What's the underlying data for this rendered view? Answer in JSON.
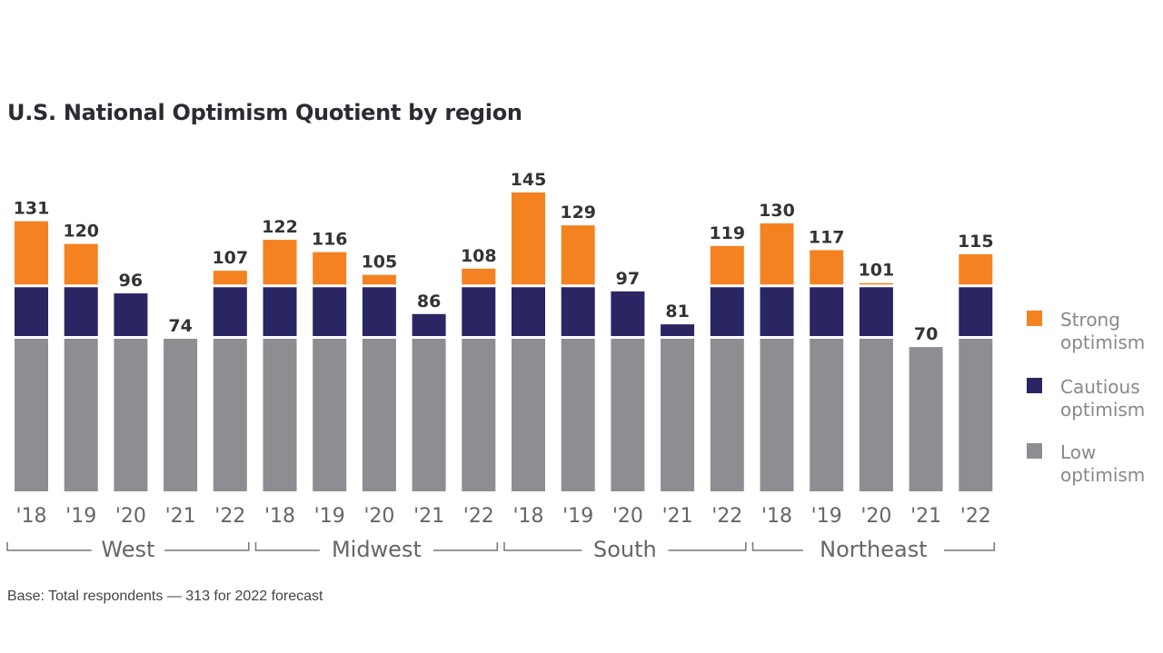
{
  "chart_data": {
    "type": "bar",
    "stacked": true,
    "title": "U.S. National Optimism Quotient by region",
    "footnote": "Base: Total respondents — 313 for 2022 forecast",
    "groups": [
      "West",
      "Midwest",
      "South",
      "Northeast"
    ],
    "categories": [
      "'18",
      "'19",
      "'20",
      "'21",
      "'22"
    ],
    "values": [
      [
        131,
        120,
        96,
        74,
        107
      ],
      [
        122,
        116,
        105,
        86,
        108
      ],
      [
        145,
        129,
        97,
        81,
        119
      ],
      [
        130,
        117,
        101,
        70,
        115
      ]
    ],
    "thresholds": {
      "low_max": 74,
      "cautious_max": 99
    },
    "series": [
      {
        "name": "Strong optimism",
        "label_lines": [
          "Strong",
          "optimism"
        ],
        "color": "#f58220"
      },
      {
        "name": "Cautious optimism",
        "label_lines": [
          "Cautious",
          "optimism"
        ],
        "color": "#2a2563"
      },
      {
        "name": "Low optimism",
        "label_lines": [
          "Low",
          "optimism"
        ],
        "color": "#8e8e92"
      }
    ],
    "ylim": [
      0,
      150
    ],
    "grid": false,
    "legend": "right"
  }
}
